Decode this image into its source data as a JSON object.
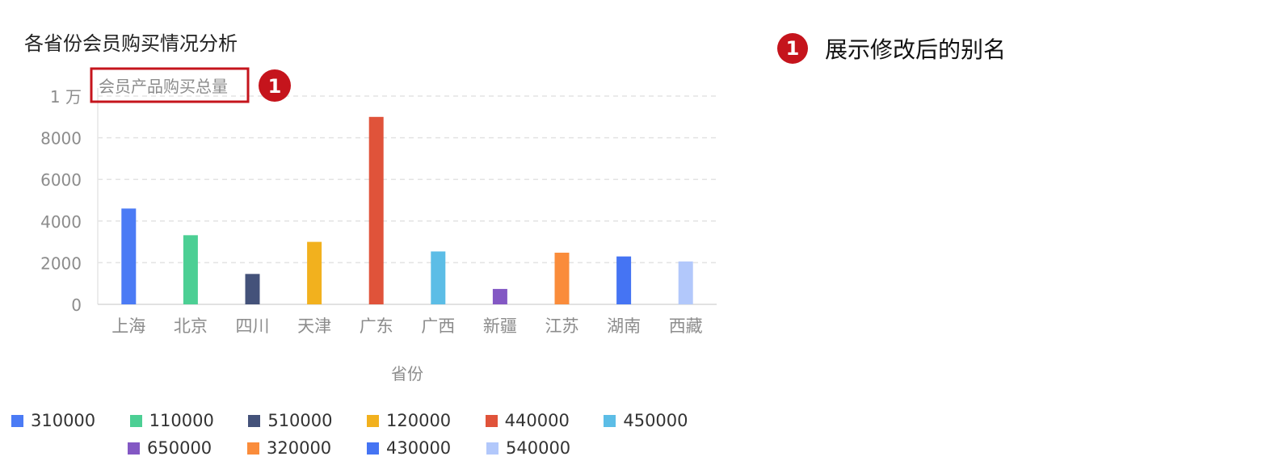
{
  "annotation": {
    "number": "1",
    "text": "展示修改后的别名"
  },
  "chart_data": {
    "type": "bar",
    "title": "各省份会员购买情况分析",
    "ylabel": "会员产品购买总量",
    "xlabel": "省份",
    "ylim": [
      0,
      10000
    ],
    "ytick_values": [
      0,
      2000,
      4000,
      6000,
      8000,
      10000
    ],
    "ytick_labels": [
      "0",
      "2000",
      "4000",
      "6000",
      "8000",
      "1 万"
    ],
    "grid": true,
    "legend_position": "bottom",
    "categories": [
      "上海",
      "北京",
      "四川",
      "天津",
      "广东",
      "广西",
      "新疆",
      "江苏",
      "湖南",
      "西藏"
    ],
    "values": [
      4600,
      3320,
      1460,
      3000,
      9000,
      2540,
      740,
      2480,
      2300,
      2060
    ],
    "legend": [
      "310000",
      "110000",
      "510000",
      "120000",
      "440000",
      "450000",
      "650000",
      "320000",
      "430000",
      "540000"
    ],
    "colors": [
      "#4b7bf5",
      "#4ccf94",
      "#44527a",
      "#f2b11e",
      "#e0533a",
      "#5cbde6",
      "#8358c4",
      "#fa8c3b",
      "#4574f3",
      "#b2c8fb"
    ],
    "highlight_color": "#c5141c"
  }
}
